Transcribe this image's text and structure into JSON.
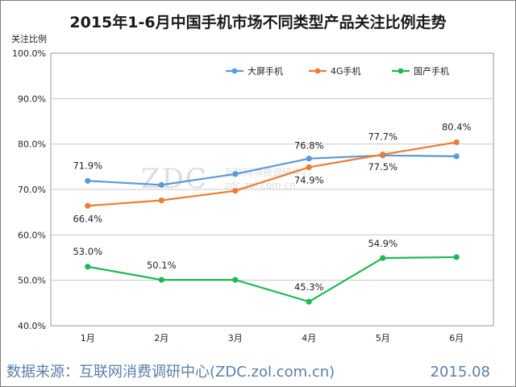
{
  "chart_data": {
    "type": "line",
    "title": "2015年1-6月中国手机市场不同类型产品关注比例走势",
    "ylabel": "关注比例",
    "xlabel": "",
    "categories": [
      "1月",
      "2月",
      "3月",
      "4月",
      "5月",
      "6月"
    ],
    "ylim": [
      40,
      100
    ],
    "yticks": [
      "40.0%",
      "50.0%",
      "60.0%",
      "70.0%",
      "80.0%",
      "90.0%",
      "100.0%"
    ],
    "grid": true,
    "legend": "top-right",
    "series": [
      {
        "name": "大屏手机",
        "color": "#5b9bd5",
        "values": [
          71.9,
          71.0,
          73.4,
          76.8,
          77.5,
          77.3
        ],
        "labels": [
          "71.9%",
          null,
          null,
          "76.8%",
          "77.5%",
          null
        ]
      },
      {
        "name": "4G手机",
        "color": "#ed7d31",
        "values": [
          66.4,
          67.6,
          69.7,
          74.9,
          77.7,
          80.4
        ],
        "labels": [
          "66.4%",
          null,
          null,
          "74.9%",
          "77.7%",
          "80.4%"
        ]
      },
      {
        "name": "国产手机",
        "color": "#1db954",
        "values": [
          53.0,
          50.1,
          50.1,
          45.3,
          54.9,
          55.1
        ],
        "labels": [
          "53.0%",
          "50.1%",
          null,
          "45.3%",
          "54.9%",
          null
        ]
      }
    ]
  },
  "footer": {
    "source": "数据来源：互联网消费调研中心(ZDC.zol.com.cn)",
    "date": "2015.08"
  },
  "watermark": {
    "logo": "ZDC",
    "text1": "互联网消费调研中心",
    "text2": "zdc.zol.com.cn"
  }
}
